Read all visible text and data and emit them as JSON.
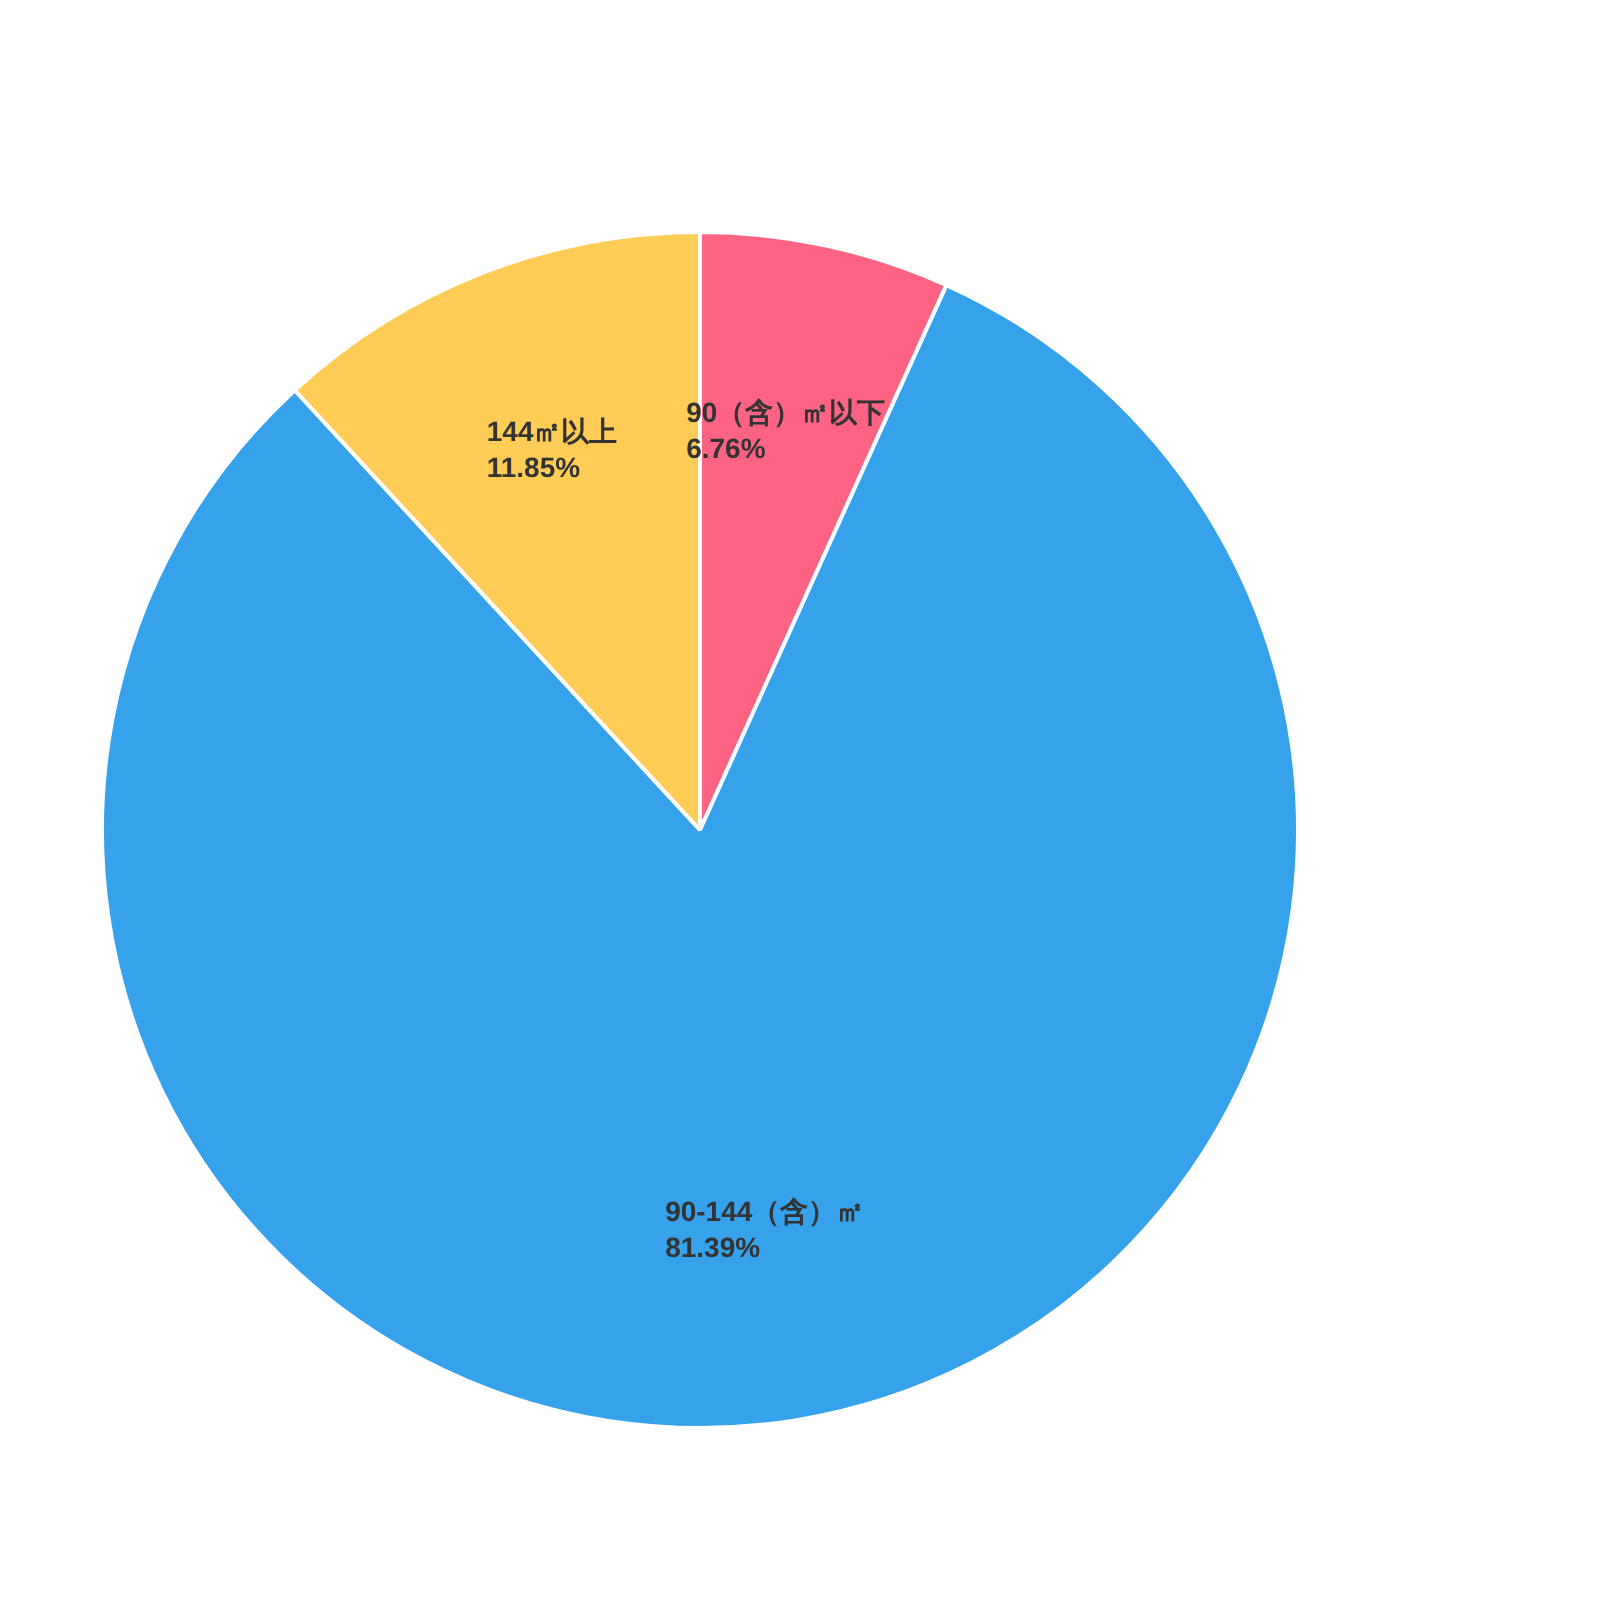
{
  "chart_data": {
    "type": "pie",
    "categories": [
      "90（含）㎡以下",
      "90-144（含）㎡",
      "144㎡以上"
    ],
    "values": [
      6.76,
      81.39,
      11.85
    ],
    "colors": [
      "#ff6384",
      "#36a2eb",
      "#ffcd56"
    ],
    "value_labels": [
      "6.76%",
      "81.39%",
      "11.85%"
    ],
    "legend": false
  }
}
